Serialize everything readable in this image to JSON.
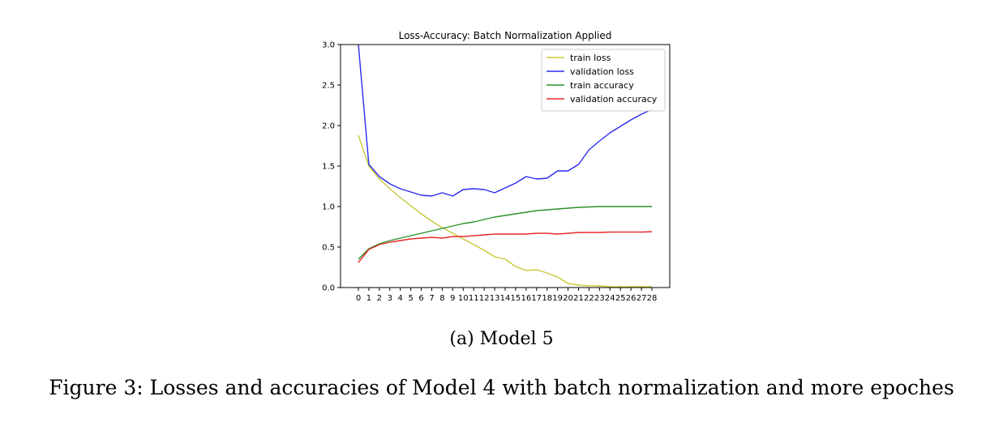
{
  "chart_data": {
    "type": "line",
    "title": "Loss-Accuracy: Batch Normalization Applied",
    "xlabel": "",
    "ylabel": "",
    "x": [
      0,
      1,
      2,
      3,
      4,
      5,
      6,
      7,
      8,
      9,
      10,
      11,
      12,
      13,
      14,
      15,
      16,
      17,
      18,
      19,
      20,
      21,
      22,
      23,
      24,
      25,
      26,
      27,
      28
    ],
    "xticks": [
      "0",
      "1",
      "2",
      "3",
      "4",
      "5",
      "6",
      "7",
      "8",
      "9",
      "10",
      "11",
      "12",
      "13",
      "14",
      "15",
      "16",
      "17",
      "18",
      "19",
      "20",
      "21",
      "22",
      "23",
      "24",
      "25",
      "26",
      "27",
      "28"
    ],
    "ylim": [
      0,
      3.0
    ],
    "yticks": [
      "0.0",
      "0.5",
      "1.0",
      "1.5",
      "2.0",
      "2.5",
      "3.0"
    ],
    "legend_position": "top-right",
    "series": [
      {
        "name": "train loss",
        "color": "#c8c83a",
        "values": [
          1.88,
          1.5,
          1.34,
          1.22,
          1.11,
          1.01,
          0.91,
          0.82,
          0.74,
          0.67,
          0.6,
          0.53,
          0.46,
          0.38,
          0.35,
          0.26,
          0.21,
          0.22,
          0.18,
          0.13,
          0.05,
          0.03,
          0.02,
          0.02,
          0.01,
          0.01,
          0.01,
          0.01,
          0.01
        ]
      },
      {
        "name": "validation loss",
        "color": "#2b2bf0",
        "values": [
          3.0,
          1.52,
          1.37,
          1.28,
          1.22,
          1.18,
          1.14,
          1.13,
          1.17,
          1.13,
          1.21,
          1.22,
          1.21,
          1.17,
          1.23,
          1.29,
          1.37,
          1.34,
          1.35,
          1.44,
          1.44,
          1.52,
          1.7,
          1.81,
          1.91,
          1.99,
          2.07,
          2.14,
          2.2
        ]
      },
      {
        "name": "train accuracy",
        "color": "#2a922a",
        "values": [
          0.35,
          0.48,
          0.54,
          0.58,
          0.61,
          0.64,
          0.67,
          0.7,
          0.73,
          0.76,
          0.79,
          0.81,
          0.84,
          0.87,
          0.89,
          0.91,
          0.93,
          0.95,
          0.96,
          0.97,
          0.98,
          0.99,
          0.995,
          1.0,
          1.0,
          1.0,
          1.0,
          1.0,
          1.0
        ]
      },
      {
        "name": "validation accuracy",
        "color": "#e82a2a",
        "values": [
          0.31,
          0.47,
          0.53,
          0.56,
          0.58,
          0.6,
          0.61,
          0.62,
          0.61,
          0.63,
          0.63,
          0.64,
          0.65,
          0.66,
          0.66,
          0.66,
          0.66,
          0.67,
          0.67,
          0.66,
          0.67,
          0.68,
          0.68,
          0.68,
          0.685,
          0.685,
          0.685,
          0.685,
          0.69
        ]
      }
    ]
  },
  "subcaption": "(a) Model 5",
  "caption": "Figure 3: Losses and accuracies of Model 4 with batch normalization and more epoches"
}
